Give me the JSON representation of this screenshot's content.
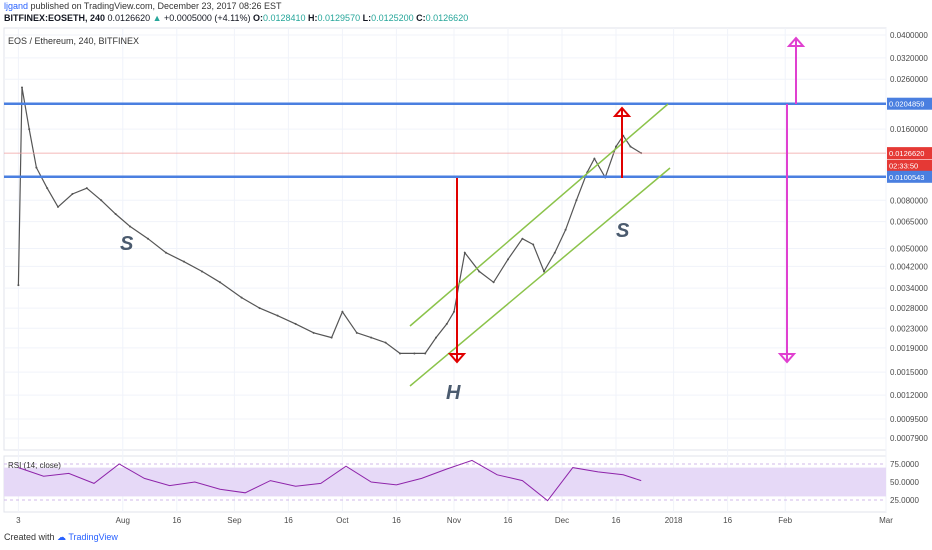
{
  "header": {
    "author": "ljgand",
    "published_text": "published on TradingView.com, December 23, 2017 08:26 EST",
    "symbol_line": "BITFINEX:EOSETH, 240",
    "change": "+0.0005000 (+4.11%)",
    "open_label": "O:",
    "open": "0.0128410",
    "high_label": "H:",
    "high": "0.0129570",
    "low_label": "L:",
    "low": "0.0125200",
    "close_label": "C:",
    "close": "0.0126620",
    "last_value": "0.0126620"
  },
  "chart_title": "EOS / Ethereum, 240, BITFINEX",
  "footer": {
    "created_with": "Created with",
    "brand": "TradingView"
  },
  "colors": {
    "level_lines": "#4a7fe0",
    "channel": "#8bc34a",
    "red_arrows": "#e00000",
    "magenta_arrows": "#e040d0",
    "price": "#555555",
    "rsi_line": "#8e24aa",
    "rsi_band": "#e6d9f7"
  },
  "annotations": {
    "left_shoulder": "S",
    "head": "H",
    "right_shoulder": "S"
  },
  "chart_data": [
    {
      "type": "line",
      "title": "EOS / Ethereum, 240, BITFINEX",
      "y_scale": "log",
      "y_ticks": [
        "0.0400000",
        "0.0320000",
        "0.0260000",
        "0.0160000",
        "0.0080000",
        "0.0065000",
        "0.0050000",
        "0.0042000",
        "0.0034000",
        "0.0028000",
        "0.0023000",
        "0.0019000",
        "0.0015000",
        "0.0012000",
        "0.0009500",
        "0.0007900"
      ],
      "x_ticks": [
        "3",
        "Aug",
        "16",
        "Sep",
        "16",
        "Oct",
        "16",
        "Nov",
        "16",
        "Dec",
        "16",
        "2018",
        "16",
        "Feb",
        "Mar"
      ],
      "price_labels": [
        {
          "label": "0.0204859",
          "kind": "level"
        },
        {
          "label": "0.0126620",
          "kind": "last"
        },
        {
          "label": "02:33:50",
          "kind": "countdown"
        },
        {
          "label": "0.0100543",
          "kind": "level"
        }
      ],
      "horizontal_levels": [
        0.0204859,
        0.0100543
      ],
      "series": [
        {
          "x": [
            "2017-07-03",
            "2017-07-04",
            "2017-07-06",
            "2017-07-08",
            "2017-07-11",
            "2017-07-14",
            "2017-07-18",
            "2017-07-22",
            "2017-07-26",
            "2017-07-30",
            "2017-08-03",
            "2017-08-08",
            "2017-08-13",
            "2017-08-18",
            "2017-08-23",
            "2017-08-28",
            "2017-09-03",
            "2017-09-08",
            "2017-09-13",
            "2017-09-18",
            "2017-09-23",
            "2017-09-28",
            "2017-10-01",
            "2017-10-05",
            "2017-10-09",
            "2017-10-13",
            "2017-10-17",
            "2017-10-21",
            "2017-10-24",
            "2017-10-27",
            "2017-10-30",
            "2017-11-01",
            "2017-11-04",
            "2017-11-08",
            "2017-11-12",
            "2017-11-16",
            "2017-11-20",
            "2017-11-23",
            "2017-11-26",
            "2017-11-29",
            "2017-12-02",
            "2017-12-05",
            "2017-12-08",
            "2017-12-10",
            "2017-12-13",
            "2017-12-16",
            "2017-12-18",
            "2017-12-20",
            "2017-12-23"
          ],
          "values": [
            0.0035,
            0.024,
            0.016,
            0.011,
            0.009,
            0.0075,
            0.0085,
            0.009,
            0.008,
            0.007,
            0.0062,
            0.0055,
            0.0048,
            0.0044,
            0.004,
            0.0036,
            0.0031,
            0.0028,
            0.0026,
            0.0024,
            0.0022,
            0.0021,
            0.0027,
            0.0022,
            0.0021,
            0.002,
            0.0018,
            0.0018,
            0.0018,
            0.0021,
            0.0024,
            0.0027,
            0.0048,
            0.004,
            0.0036,
            0.0045,
            0.0055,
            0.0052,
            0.004,
            0.0048,
            0.006,
            0.008,
            0.0105,
            0.012,
            0.01,
            0.0135,
            0.015,
            0.0135,
            0.012662
          ]
        }
      ]
    },
    {
      "type": "line",
      "title": "RSI (14, close)",
      "y_ticks": [
        "75.0000",
        "50.0000",
        "25.0000"
      ],
      "band": [
        30,
        70
      ],
      "series": [
        {
          "x": [
            "2017-07-03",
            "2017-07-10",
            "2017-07-17",
            "2017-07-24",
            "2017-07-31",
            "2017-08-07",
            "2017-08-14",
            "2017-08-21",
            "2017-08-28",
            "2017-09-04",
            "2017-09-11",
            "2017-09-18",
            "2017-09-25",
            "2017-10-02",
            "2017-10-09",
            "2017-10-16",
            "2017-10-23",
            "2017-10-30",
            "2017-11-06",
            "2017-11-13",
            "2017-11-20",
            "2017-11-27",
            "2017-12-04",
            "2017-12-11",
            "2017-12-18",
            "2017-12-23"
          ],
          "values": [
            70,
            58,
            62,
            48,
            75,
            55,
            45,
            50,
            40,
            35,
            52,
            44,
            48,
            72,
            50,
            46,
            55,
            68,
            80,
            60,
            52,
            24,
            70,
            64,
            60,
            52
          ]
        }
      ]
    }
  ]
}
